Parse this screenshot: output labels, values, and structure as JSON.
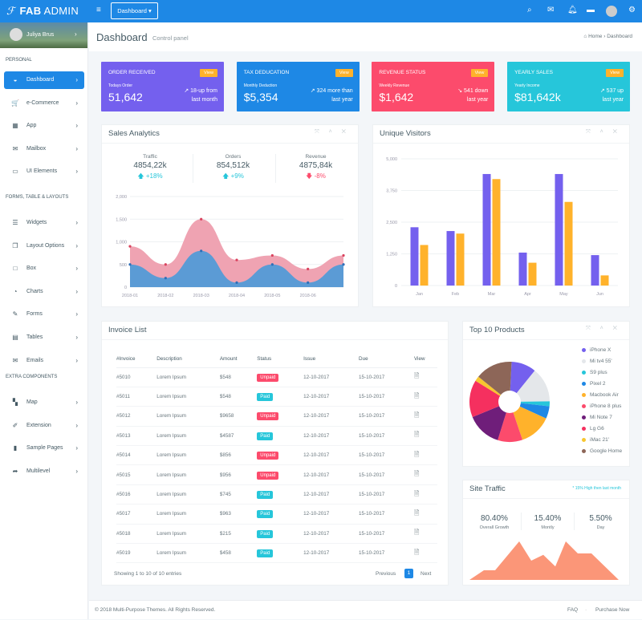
{
  "colors": {
    "primary": "#1e88e5",
    "purple": "#7460ee",
    "danger": "#fc4b6c",
    "info": "#26c6da",
    "warning": "#ffb22b",
    "salesA": "#5b9bd5",
    "salesB": "#efa3b2",
    "traffic": "#fb9678"
  },
  "topbar": {
    "logo_bold": "FAB",
    "logo_thin": " ADMIN",
    "menu_icon": "hamburger-icon",
    "dropdown_label": "Dashboard ▾",
    "icons": [
      "search-icon",
      "mail-icon",
      "bell-icon",
      "chat-icon",
      "avatar",
      "gear-icon"
    ]
  },
  "sidebar": {
    "user": "Juliya Brus",
    "sections": [
      {
        "label": "PERSONAL"
      },
      {
        "label": "FORMS, TABLE & LAYOUTS"
      },
      {
        "label": "EXTRA COMPONENTS"
      }
    ],
    "items": [
      {
        "label": "Dashboard",
        "icon": "dashboard-icon",
        "glyph": "◒",
        "active": true,
        "section": 0
      },
      {
        "label": "e-Commerce",
        "icon": "cart-icon",
        "glyph": "🛒",
        "section": 0
      },
      {
        "label": "App",
        "icon": "grid-icon",
        "glyph": "▦",
        "section": 0
      },
      {
        "label": "Mailbox",
        "icon": "envelope-icon",
        "glyph": "✉",
        "section": 0
      },
      {
        "label": "UI Elements",
        "icon": "laptop-icon",
        "glyph": "▭",
        "section": 0
      },
      {
        "label": "Widgets",
        "icon": "bars-icon",
        "glyph": "☰",
        "section": 1
      },
      {
        "label": "Layout Options",
        "icon": "copy-icon",
        "glyph": "❐",
        "section": 1
      },
      {
        "label": "Box",
        "icon": "square-icon",
        "glyph": "□",
        "section": 1
      },
      {
        "label": "Charts",
        "icon": "pie-chart-icon",
        "glyph": "◔",
        "section": 1
      },
      {
        "label": "Forms",
        "icon": "edit-icon",
        "glyph": "✎",
        "section": 1
      },
      {
        "label": "Tables",
        "icon": "table-icon",
        "glyph": "▤",
        "section": 1
      },
      {
        "label": "Emails",
        "icon": "envelope-open-icon",
        "glyph": "✉",
        "section": 1
      },
      {
        "label": "Map",
        "icon": "map-icon",
        "glyph": "▚",
        "section": 2
      },
      {
        "label": "Extension",
        "icon": "plug-icon",
        "glyph": "✐",
        "section": 2
      },
      {
        "label": "Sample Pages",
        "icon": "file-icon",
        "glyph": "▮",
        "section": 2
      },
      {
        "label": "Multilevel",
        "icon": "share-icon",
        "glyph": "➦",
        "section": 2
      }
    ]
  },
  "header": {
    "title": "Dashboard",
    "subtitle": "Control panel",
    "breadcrumb": [
      "Home",
      "Dashboard"
    ]
  },
  "stats": [
    {
      "title": "ORDER RECEIVED",
      "button": "View",
      "sub": "Todays Order",
      "value": "51,642",
      "delta1": "↗ 18-up from",
      "delta2": "last month",
      "color": "#7460ee"
    },
    {
      "title": "TAX DEDUCATION",
      "button": "View",
      "sub": "Monthly Deduction",
      "value": "$5,354",
      "delta1": "↗ 324 more than",
      "delta2": "last year",
      "color": "#1e88e5"
    },
    {
      "title": "REVENUE STATUS",
      "button": "View",
      "sub": "Weekly Revenue",
      "value": "$1,642",
      "delta1": "↘ 541 down",
      "delta2": "last year",
      "color": "#fc4b6c"
    },
    {
      "title": "YEARLY SALES",
      "button": "View",
      "sub": "Yearly Income",
      "value": "$81,642k",
      "delta1": "↗ 537 up",
      "delta2": "last year",
      "color": "#26c6da"
    }
  ],
  "sales": {
    "title": "Sales Analytics",
    "controls": "⤧ ˄ ✕",
    "kpis": [
      {
        "label": "Traffic",
        "value": "4854,22k",
        "change": "🡅 +18%",
        "up": true
      },
      {
        "label": "Orders",
        "value": "854,512k",
        "change": "🡅 +9%",
        "up": true
      },
      {
        "label": "Revenue",
        "value": "4875,84k",
        "change": "🡇 -8%",
        "up": false
      }
    ]
  },
  "visitors": {
    "title": "Unique Visitors",
    "controls": "⤧ ˄ ✕"
  },
  "chart_data": [
    {
      "type": "area",
      "x": [
        "2018-01",
        "2018-02",
        "2018-03",
        "2018-04",
        "2018-05",
        "2018-06",
        ""
      ],
      "ylim": [
        0,
        2000
      ],
      "yticks": [
        "0",
        "500",
        "1,000",
        "1,500",
        "2,000"
      ],
      "grid": true,
      "series": [
        {
          "values": [
            900,
            500,
            1500,
            600,
            700,
            400,
            700
          ],
          "color": "#efa3b2"
        },
        {
          "values": [
            500,
            200,
            800,
            100,
            500,
            100,
            500
          ],
          "color": "#5b9bd5"
        }
      ]
    },
    {
      "type": "bar",
      "categories": [
        "Jan",
        "Feb",
        "Mar",
        "Apr",
        "May",
        "Jun"
      ],
      "ylim": [
        0,
        5000
      ],
      "yticks": [
        "0",
        "1,250",
        "2,500",
        "3,750",
        "5,000"
      ],
      "grid": true,
      "series": [
        {
          "values": [
            2300,
            2150,
            4400,
            1300,
            4400,
            1200
          ],
          "color": "#7460ee"
        },
        {
          "values": [
            1600,
            2050,
            4200,
            900,
            3300,
            400
          ],
          "color": "#ffb22b"
        }
      ]
    },
    {
      "type": "pie",
      "labels": [
        "iPhone X",
        "Mi tv4 55'",
        "S9 plus",
        "Pixel 2",
        "Macbook Air",
        "iPhone 8 plus",
        "Mi Note 7",
        "Lg G6",
        "iMac 21'",
        "Google Home"
      ],
      "values": [
        10,
        14,
        2,
        5,
        13,
        10,
        14,
        15,
        2,
        15
      ],
      "colors": [
        "#7460ee",
        "#e4e7ea",
        "#26c6da",
        "#1e88e5",
        "#ffb22b",
        "#fc4b6c",
        "#6f1e7a",
        "#f5305f",
        "#f7c630",
        "#8d6658"
      ]
    },
    {
      "type": "area",
      "values": [
        0,
        20,
        20,
        50,
        80,
        40,
        52,
        28,
        80,
        55,
        55,
        0
      ],
      "color": "#fb9678"
    }
  ],
  "invoice": {
    "title": "Invoice List",
    "columns": [
      "#Invoice",
      "Description",
      "Amount",
      "Status",
      "Issue",
      "Due",
      "View"
    ],
    "rows": [
      [
        "#5010",
        "Lorem Ipsum",
        "$548",
        "Unpaid",
        "12-10-2017",
        "15-10-2017"
      ],
      [
        "#5011",
        "Lorem Ipsum",
        "$548",
        "Paid",
        "12-10-2017",
        "15-10-2017"
      ],
      [
        "#5012",
        "Lorem Ipsum",
        "$9658",
        "Unpaid",
        "12-10-2017",
        "15-10-2017"
      ],
      [
        "#5013",
        "Lorem Ipsum",
        "$4587",
        "Paid",
        "12-10-2017",
        "15-10-2017"
      ],
      [
        "#5014",
        "Lorem Ipsum",
        "$856",
        "Unpaid",
        "12-10-2017",
        "15-10-2017"
      ],
      [
        "#5015",
        "Lorem Ipsum",
        "$956",
        "Unpaid",
        "12-10-2017",
        "15-10-2017"
      ],
      [
        "#5016",
        "Lorem Ipsum",
        "$745",
        "Paid",
        "12-10-2017",
        "15-10-2017"
      ],
      [
        "#5017",
        "Lorem Ipsum",
        "$963",
        "Paid",
        "12-10-2017",
        "15-10-2017"
      ],
      [
        "#5018",
        "Lorem Ipsum",
        "$215",
        "Paid",
        "12-10-2017",
        "15-10-2017"
      ],
      [
        "#5019",
        "Lorem Ipsum",
        "$458",
        "Paid",
        "12-10-2017",
        "15-10-2017"
      ]
    ],
    "info": "Showing 1 to 10 of 10 entries",
    "prev": "Previous",
    "page": "1",
    "next": "Next"
  },
  "products": {
    "title": "Top 10 Products",
    "controls": "⤧ ˄ ✕"
  },
  "traffic": {
    "title": "Site Traffic",
    "note": "* 15% High then last month",
    "kpis": [
      {
        "value": "80.40%",
        "label": "Overall Growth"
      },
      {
        "value": "15.40%",
        "label": "Montly"
      },
      {
        "value": "5.50%",
        "label": "Day"
      }
    ]
  },
  "footer": {
    "copyright": "© 2018 Multi-Purpose Themes. All Rights Reserved.",
    "links": [
      "FAQ",
      "Purchase Now"
    ]
  }
}
